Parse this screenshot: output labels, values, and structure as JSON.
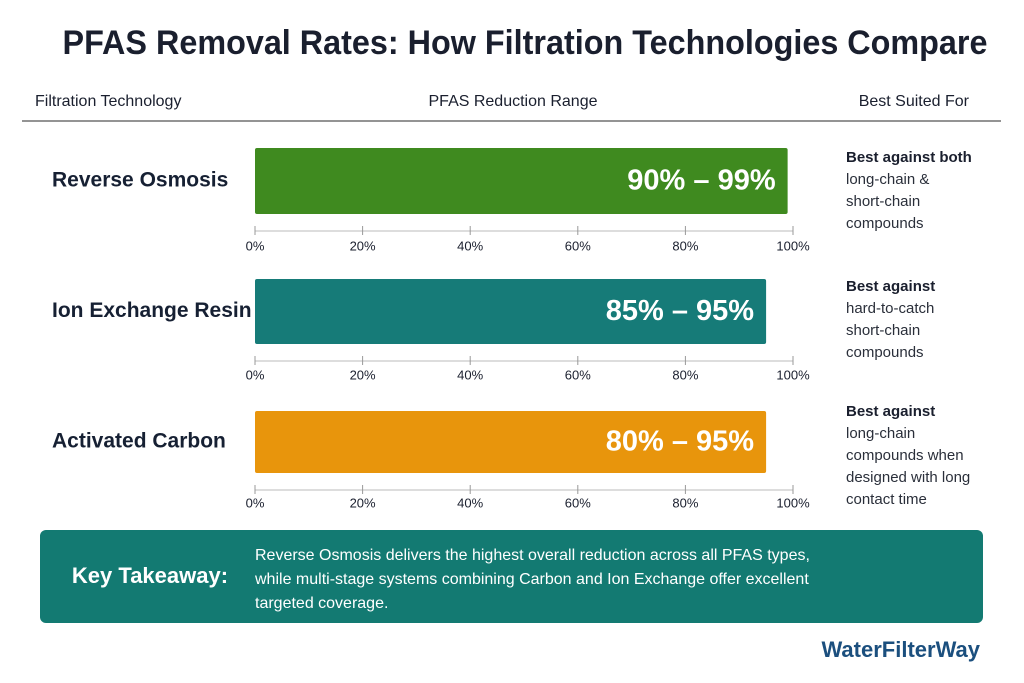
{
  "title": "PFAS Removal Rates: How Filtration Technologies Compare",
  "headers": [
    "Filtration Technology",
    "PFAS Reduction Range",
    "Best Suited For"
  ],
  "chart_data": [
    {
      "type": "bar",
      "categories": [
        "Reverse Osmosis"
      ],
      "values": [
        99
      ],
      "value_labels": [
        "90% – 99%"
      ],
      "color": "#3f8a1f",
      "xlim": [
        0,
        100
      ],
      "xticks": [
        {
          "value": 0,
          "label": "0%"
        },
        {
          "value": 20,
          "label": "20%"
        },
        {
          "value": 40,
          "label": "40%"
        },
        {
          "value": 60,
          "label": "60%"
        },
        {
          "value": 80,
          "label": "80%"
        },
        {
          "value": 100,
          "label": "100%"
        }
      ]
    },
    {
      "type": "bar",
      "categories": [
        "Ion Exchange Resin"
      ],
      "values": [
        95
      ],
      "value_labels": [
        "85% – 95%"
      ],
      "color": "#167b78",
      "xlim": [
        0,
        100
      ],
      "xticks": [
        {
          "value": 0,
          "label": "0%"
        },
        {
          "value": 20,
          "label": "20%"
        },
        {
          "value": 40,
          "label": "40%"
        },
        {
          "value": 60,
          "label": "60%"
        },
        {
          "value": 80,
          "label": "80%"
        },
        {
          "value": 100,
          "label": "100%"
        }
      ]
    },
    {
      "type": "bar",
      "categories": [
        "Activated Carbon"
      ],
      "values": [
        95
      ],
      "value_labels": [
        "80% – 95%"
      ],
      "color": "#e8950c",
      "xlim": [
        0,
        100
      ],
      "xticks": [
        {
          "value": 0,
          "label": "0%"
        },
        {
          "value": 20,
          "label": "20%"
        },
        {
          "value": 40,
          "label": "40%"
        },
        {
          "value": 60,
          "label": "60%"
        },
        {
          "value": 80,
          "label": "80%"
        },
        {
          "value": 100,
          "label": "100%"
        }
      ]
    }
  ],
  "best_suited_for": [
    {
      "heading": "Best against both",
      "lines": [
        "long-chain &",
        "short-chain",
        "compounds"
      ]
    },
    {
      "heading": "Best against",
      "lines": [
        "hard-to-catch",
        "short-chain",
        "compounds"
      ]
    },
    {
      "heading": "Best against",
      "lines": [
        "long-chain",
        "compounds when",
        "designed with long",
        "contact time"
      ]
    }
  ],
  "takeaway": {
    "label": "Key Takeaway:",
    "lines": [
      "Reverse Osmosis delivers the highest overall reduction across all PFAS types,",
      "while multi-stage systems combining Carbon and Ion Exchange offer excellent",
      "targeted coverage."
    ]
  },
  "brand": "WaterFilterWay"
}
